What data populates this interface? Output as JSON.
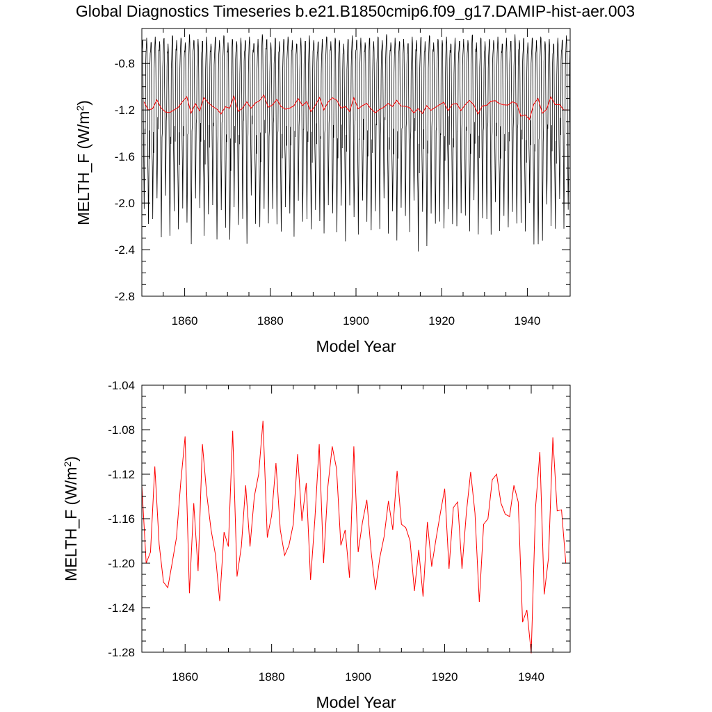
{
  "title": "Global Diagnostics Timeseries b.e21.B1850cmip6.f09_g17.DAMIP-hist-aer.003",
  "colors": {
    "monthly": "#000000",
    "annual": "#ff0000"
  },
  "chart_data": [
    {
      "type": "line",
      "xlabel": "Model Year",
      "ylabel": "MELTH_F (W/m",
      "ylabel_sup": "2",
      "ylabel_close": ")",
      "xlim": [
        1850,
        1950
      ],
      "ylim": [
        -2.8,
        -0.5
      ],
      "x_ticks": [
        1860,
        1880,
        1900,
        1920,
        1940
      ],
      "y_ticks": [
        -0.8,
        -1.2,
        -1.6,
        -2.0,
        -2.4,
        -2.8
      ],
      "y_tick_labels": [
        "-0.8",
        "-1.2",
        "-1.6",
        "-2.0",
        "-2.4",
        "-2.8"
      ],
      "series": [
        {
          "kind": "monthly",
          "color": "#000000",
          "peak_values": [
            -0.6,
            -0.58,
            -0.62,
            -0.57,
            -0.61,
            -0.59,
            -0.63,
            -0.56,
            -0.6,
            -0.58,
            -0.62,
            -0.55,
            -0.6,
            -0.59,
            -0.61,
            -0.57,
            -0.63,
            -0.58,
            -0.6,
            -0.56,
            -0.62,
            -0.59,
            -0.61,
            -0.58,
            -0.6,
            -0.57,
            -0.63,
            -0.59,
            -0.55,
            -0.6,
            -0.62,
            -0.58,
            -0.61,
            -0.59,
            -0.57,
            -0.6,
            -0.63,
            -0.58,
            -0.61,
            -0.56,
            -0.6,
            -0.62,
            -0.59,
            -0.57,
            -0.61,
            -0.58,
            -0.6,
            -0.63,
            -0.59,
            -0.56,
            -0.6,
            -0.58,
            -0.62,
            -0.59,
            -0.61,
            -0.57,
            -0.6,
            -0.55,
            -0.62,
            -0.58,
            -0.61,
            -0.59,
            -0.63,
            -0.57,
            -0.6,
            -0.58,
            -0.61,
            -0.56,
            -0.62,
            -0.59,
            -0.6,
            -0.57,
            -0.63,
            -0.58,
            -0.61,
            -0.59,
            -0.6,
            -0.56,
            -0.62,
            -0.58,
            -0.61,
            -0.59,
            -0.6,
            -0.57,
            -0.63,
            -0.58,
            -0.61,
            -0.55,
            -0.6,
            -0.59,
            -0.62,
            -0.58,
            -0.6,
            -0.57,
            -0.61,
            -0.59,
            -0.63,
            -0.58,
            -0.6,
            -0.56
          ],
          "trough_values": [
            -2.05,
            -2.22,
            -2.1,
            -1.98,
            -2.26,
            -1.95,
            -2.28,
            -2.04,
            -2.25,
            -2.01,
            -2.2,
            -2.3,
            -1.96,
            -2.08,
            -2.24,
            -2.12,
            -1.99,
            -2.33,
            -2.06,
            -2.18,
            -2.34,
            -2.0,
            -2.22,
            -2.09,
            -2.35,
            -1.97,
            -2.14,
            -2.23,
            -2.02,
            -2.19,
            -2.05,
            -2.15,
            -2.27,
            -2.0,
            -2.12,
            -2.24,
            -1.98,
            -2.2,
            -2.1,
            -2.25,
            -2.03,
            -2.17,
            -2.26,
            -1.99,
            -2.11,
            -2.21,
            -2.05,
            -2.28,
            -2.02,
            -2.16,
            -2.23,
            -2.0,
            -2.13,
            -2.25,
            -2.07,
            -2.19,
            -1.98,
            -2.22,
            -2.1,
            -2.27,
            -2.04,
            -2.15,
            -2.21,
            -2.0,
            -2.38,
            -2.09,
            -2.37,
            -2.06,
            -2.2,
            -2.12,
            -2.25,
            -2.01,
            -2.18,
            -2.24,
            -2.05,
            -2.13,
            -2.21,
            -1.99,
            -2.27,
            -2.1,
            -2.16,
            -2.23,
            -2.02,
            -2.19,
            -2.11,
            -2.25,
            -2.04,
            -2.2,
            -2.14,
            -2.26,
            -2.0,
            -2.32,
            -2.38,
            -2.28,
            -2.04,
            -2.15,
            -2.22,
            -2.0,
            -2.18,
            -2.08
          ]
        },
        {
          "kind": "annual",
          "color": "#ff0000",
          "values_ref": "annual_mean"
        }
      ]
    },
    {
      "type": "line",
      "xlabel": "Model Year",
      "ylabel": "MELTH_F (W/m",
      "ylabel_sup": "2",
      "ylabel_close": ")",
      "xlim": [
        1850,
        1949
      ],
      "ylim": [
        -1.28,
        -1.04
      ],
      "x_ticks": [
        1860,
        1880,
        1900,
        1920,
        1940
      ],
      "y_ticks": [
        -1.04,
        -1.08,
        -1.12,
        -1.16,
        -1.2,
        -1.24,
        -1.28
      ],
      "y_tick_labels": [
        "-1.04",
        "-1.08",
        "-1.12",
        "-1.16",
        "-1.20",
        "-1.24",
        "-1.28"
      ],
      "series": [
        {
          "kind": "annual",
          "color": "#ff0000",
          "start_year": 1850,
          "values": [
            -1.13,
            -1.2,
            -1.19,
            -1.113,
            -1.183,
            -1.217,
            -1.222,
            -1.2,
            -1.177,
            -1.127,
            -1.086,
            -1.227,
            -1.146,
            -1.207,
            -1.093,
            -1.138,
            -1.17,
            -1.192,
            -1.234,
            -1.172,
            -1.185,
            -1.081,
            -1.212,
            -1.185,
            -1.13,
            -1.185,
            -1.14,
            -1.12,
            -1.072,
            -1.177,
            -1.157,
            -1.11,
            -1.17,
            -1.193,
            -1.184,
            -1.165,
            -1.102,
            -1.162,
            -1.128,
            -1.215,
            -1.16,
            -1.093,
            -1.2,
            -1.131,
            -1.095,
            -1.115,
            -1.184,
            -1.17,
            -1.213,
            -1.095,
            -1.19,
            -1.163,
            -1.143,
            -1.19,
            -1.224,
            -1.195,
            -1.176,
            -1.144,
            -1.17,
            -1.117,
            -1.165,
            -1.168,
            -1.18,
            -1.225,
            -1.188,
            -1.23,
            -1.163,
            -1.203,
            -1.178,
            -1.155,
            -1.133,
            -1.205,
            -1.15,
            -1.145,
            -1.205,
            -1.155,
            -1.118,
            -1.155,
            -1.235,
            -1.165,
            -1.16,
            -1.125,
            -1.12,
            -1.146,
            -1.156,
            -1.158,
            -1.13,
            -1.145,
            -1.253,
            -1.242,
            -1.281,
            -1.15,
            -1.1,
            -1.228,
            -1.195,
            -1.087,
            -1.153,
            -1.152,
            -1.2,
            -1.2
          ]
        }
      ]
    }
  ]
}
